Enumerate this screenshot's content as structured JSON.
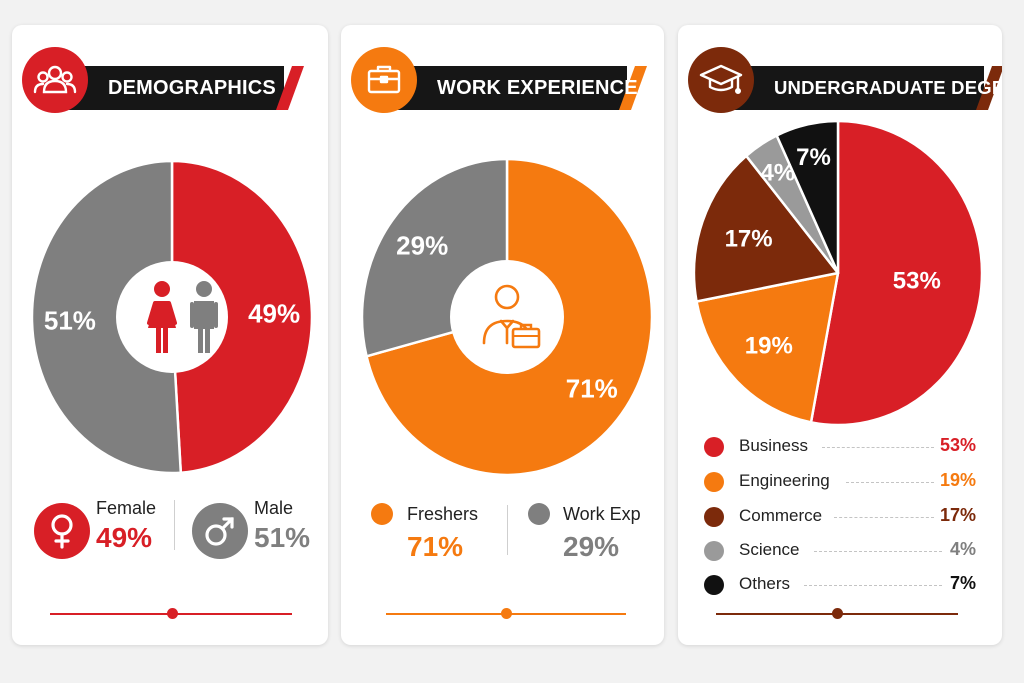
{
  "colors": {
    "red": "#d81f26",
    "gray": "#7f7f7f",
    "orange": "#f57a10",
    "brown": "#7c2a0b",
    "lightgray": "#9a9a9a",
    "black": "#111111",
    "darkbar": "#161616"
  },
  "panels": [
    {
      "title": "DEMOGRAPHICS",
      "icon": "people-group-icon",
      "center_icon": "female-male-figures-icon",
      "legend": [
        {
          "label": "Female",
          "value": "49%",
          "icon": "female-symbol-icon"
        },
        {
          "label": "Male",
          "value": "51%",
          "icon": "male-symbol-icon"
        }
      ]
    },
    {
      "title": "WORK EXPERIENCE",
      "icon": "briefcase-icon",
      "center_icon": "professional-with-briefcase-icon",
      "legend": [
        {
          "label": "Freshers",
          "value": "71%"
        },
        {
          "label": "Work Exp",
          "value": "29%"
        }
      ]
    },
    {
      "title": "UNDERGRADUATE DEGREE",
      "icon": "graduation-cap-icon",
      "legend": [
        {
          "label": "Business",
          "value": "53%"
        },
        {
          "label": "Engineering",
          "value": "19%"
        },
        {
          "label": "Commerce",
          "value": "17%"
        },
        {
          "label": "Science",
          "value": "4%"
        },
        {
          "label": "Others",
          "value": "7%"
        }
      ]
    }
  ],
  "chart_data": [
    {
      "type": "pie",
      "title": "DEMOGRAPHICS",
      "categories": [
        "Female",
        "Male"
      ],
      "values": [
        49,
        51
      ],
      "labels": [
        "49%",
        "51%"
      ],
      "colors": [
        "#d81f26",
        "#7f7f7f"
      ],
      "donut": true
    },
    {
      "type": "pie",
      "title": "WORK EXPERIENCE",
      "categories": [
        "Freshers",
        "Work Exp"
      ],
      "values": [
        71,
        29
      ],
      "labels": [
        "71%",
        "29%"
      ],
      "colors": [
        "#f57a10",
        "#7f7f7f"
      ],
      "donut": true
    },
    {
      "type": "pie",
      "title": "UNDERGRADUATE DEGREE",
      "categories": [
        "Business",
        "Engineering",
        "Commerce",
        "Science",
        "Others"
      ],
      "values": [
        53,
        19,
        17,
        4,
        7
      ],
      "labels": [
        "53%",
        "19%",
        "17%",
        "4%",
        "7%"
      ],
      "colors": [
        "#d81f26",
        "#f57a10",
        "#7c2a0b",
        "#9a9a9a",
        "#111111"
      ],
      "donut": false
    }
  ]
}
